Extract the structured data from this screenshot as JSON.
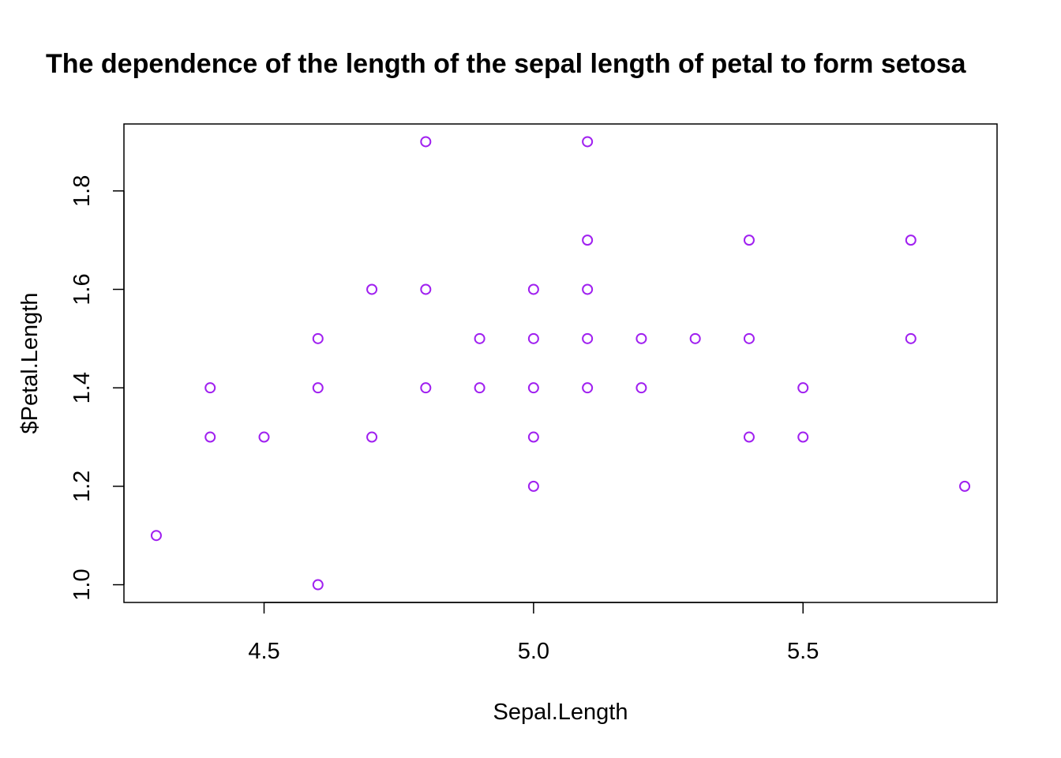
{
  "chart_data": {
    "type": "scatter",
    "title": "The dependence of the length of the sepal length of petal to form setosa",
    "xlabel": "Sepal.Length",
    "ylabel": "$Petal.Length",
    "xlim": [
      4.24,
      5.86
    ],
    "ylim": [
      0.964,
      1.936
    ],
    "x_ticks": [
      "4.5",
      "5.0",
      "5.5"
    ],
    "y_ticks": [
      "1.0",
      "1.2",
      "1.4",
      "1.6",
      "1.8"
    ],
    "grid": false,
    "legend": "none",
    "marker": "open-circle",
    "point_color": "#a020f0",
    "series": [
      {
        "x": [
          4.3,
          4.4,
          4.4,
          4.5,
          4.6,
          4.6,
          4.6,
          4.7,
          4.7,
          4.8,
          4.8,
          4.8,
          4.9,
          4.9,
          5.0,
          5.0,
          5.0,
          5.0,
          5.0,
          5.1,
          5.1,
          5.1,
          5.1,
          5.1,
          5.2,
          5.2,
          5.3,
          5.4,
          5.4,
          5.4,
          5.5,
          5.5,
          5.7,
          5.7,
          5.8
        ],
        "y": [
          1.1,
          1.3,
          1.4,
          1.3,
          1.0,
          1.4,
          1.5,
          1.3,
          1.6,
          1.4,
          1.6,
          1.9,
          1.4,
          1.5,
          1.2,
          1.3,
          1.4,
          1.5,
          1.6,
          1.4,
          1.5,
          1.6,
          1.7,
          1.9,
          1.4,
          1.5,
          1.5,
          1.3,
          1.5,
          1.7,
          1.3,
          1.4,
          1.5,
          1.7,
          1.2
        ]
      }
    ]
  }
}
